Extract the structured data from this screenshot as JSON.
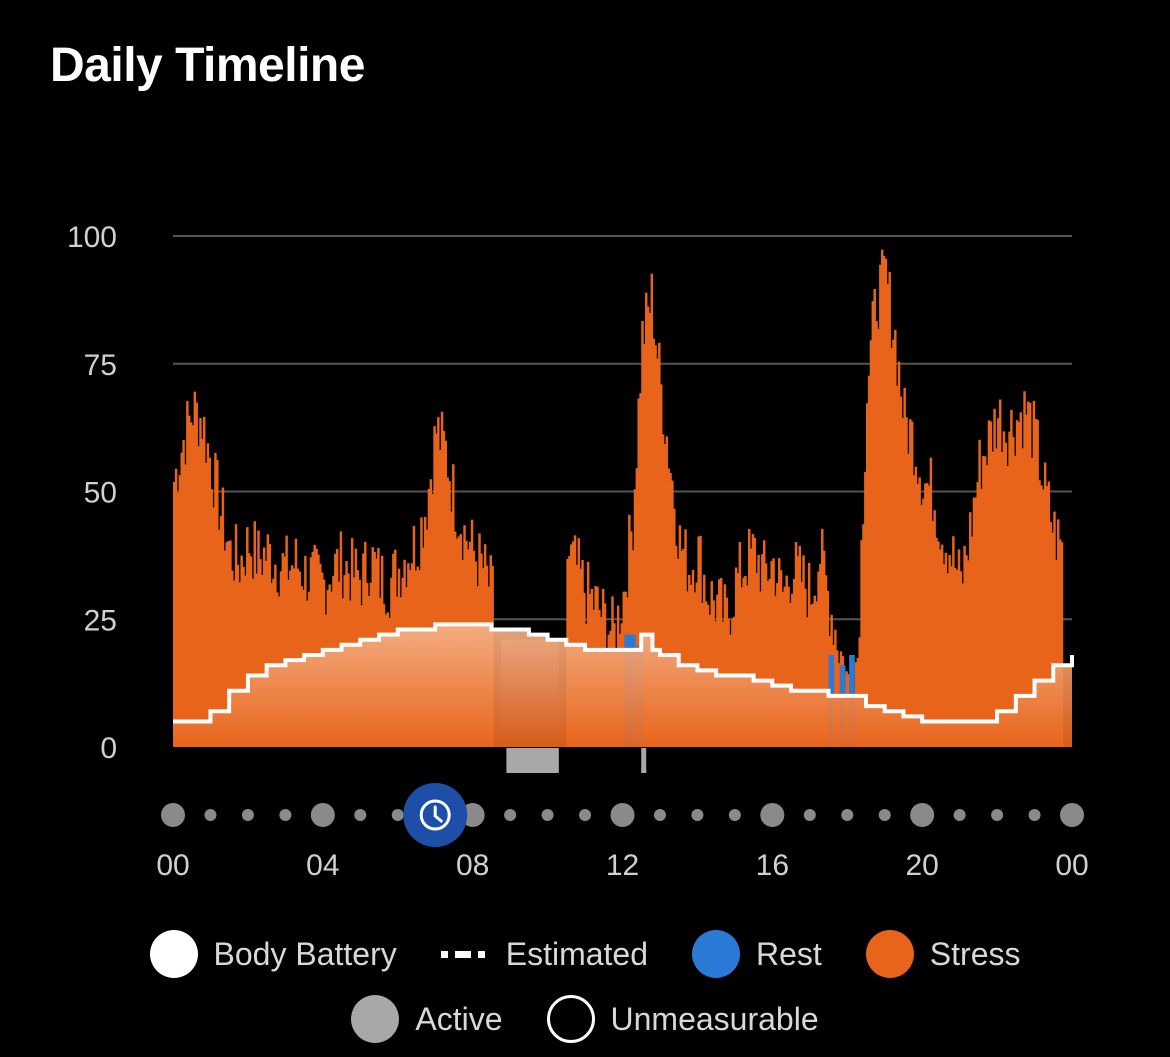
{
  "header": {
    "title": "Daily Timeline"
  },
  "colors": {
    "background": "#000000",
    "stress": "#e8641b",
    "rest": "#2a7ad6",
    "active": "#a8a8a8",
    "body_battery": "#ffffff",
    "gridline": "#555555",
    "timeline_marker": "#1d4fa8"
  },
  "timeline_marker": {
    "icon": "clock-icon",
    "hour": 7
  },
  "legend": {
    "body_battery": "Body Battery",
    "estimated": "Estimated",
    "rest": "Rest",
    "stress": "Stress",
    "active": "Active",
    "unmeasurable": "Unmeasurable"
  },
  "chart_data": {
    "type": "bar",
    "title": "Daily Timeline",
    "xlabel": "",
    "ylabel": "",
    "ylim": [
      0,
      100
    ],
    "yticks": [
      "0",
      "25",
      "50",
      "75",
      "100"
    ],
    "xticks": [
      "00",
      "04",
      "08",
      "12",
      "16",
      "20",
      "00"
    ],
    "xlim_hours": [
      0,
      24
    ],
    "grid": true,
    "legend_position": "bottom",
    "stress_series": {
      "name": "Stress",
      "hours": [
        0,
        0.25,
        0.5,
        0.75,
        1,
        1.25,
        1.5,
        1.75,
        2,
        2.25,
        2.5,
        2.75,
        3,
        3.25,
        3.5,
        3.75,
        4,
        4.25,
        4.5,
        4.75,
        5,
        5.25,
        5.5,
        5.75,
        6,
        6.25,
        6.5,
        6.75,
        7,
        7.25,
        7.5,
        7.75,
        8,
        8.25,
        8.5,
        10.5,
        10.75,
        11,
        11.25,
        11.5,
        11.75,
        12,
        12.25,
        12.5,
        12.75,
        13,
        13.25,
        13.5,
        13.75,
        14,
        14.25,
        14.5,
        14.75,
        15,
        15.25,
        15.5,
        15.75,
        16,
        16.25,
        16.5,
        16.75,
        17,
        17.25,
        17.5,
        17.75,
        18,
        18.25,
        18.5,
        18.75,
        19,
        19.25,
        19.5,
        19.75,
        20,
        20.25,
        20.5,
        20.75,
        21,
        21.25,
        21.5,
        21.75,
        22,
        22.25,
        22.5,
        22.75,
        23,
        23.25,
        23.5,
        23.75
      ],
      "values": [
        52,
        60,
        66,
        64,
        55,
        46,
        38,
        36,
        40,
        37,
        38,
        36,
        35,
        36,
        34,
        33,
        32,
        35,
        36,
        34,
        33,
        37,
        33,
        32,
        35,
        38,
        40,
        48,
        62,
        58,
        48,
        42,
        38,
        35,
        30,
        38,
        35,
        30,
        28,
        25,
        22,
        30,
        45,
        80,
        88,
        70,
        55,
        40,
        35,
        38,
        30,
        28,
        25,
        32,
        36,
        38,
        34,
        36,
        30,
        35,
        33,
        30,
        38,
        28,
        20,
        12,
        18,
        70,
        88,
        92,
        80,
        64,
        60,
        52,
        50,
        42,
        38,
        32,
        42,
        55,
        60,
        65,
        62,
        64,
        66,
        60,
        50,
        42,
        38
      ]
    },
    "rest_periods": [
      {
        "start": 12.05,
        "end": 12.35,
        "value": 22
      },
      {
        "start": 12.4,
        "end": 12.55,
        "value": 20
      },
      {
        "start": 17.5,
        "end": 17.65,
        "value": 18
      },
      {
        "start": 17.8,
        "end": 17.95,
        "value": 16
      },
      {
        "start": 18.05,
        "end": 18.2,
        "value": 18
      }
    ],
    "unmeasurable_period": {
      "start": 8.75,
      "end": 10.3
    },
    "active_periods": [
      {
        "start": 8.9,
        "end": 10.3
      },
      {
        "start": 12.5,
        "end": 12.6
      }
    ],
    "body_battery": {
      "name": "Body Battery",
      "hours": [
        0,
        0.6,
        1,
        1.5,
        2,
        2.5,
        3,
        3.5,
        4,
        4.5,
        5,
        5.5,
        6,
        6.5,
        7,
        7.5,
        8,
        8.5,
        9,
        9.5,
        10,
        10.5,
        11,
        11.5,
        12,
        12.3,
        12.5,
        12.8,
        13,
        13.5,
        14,
        14.5,
        15,
        15.5,
        16,
        16.5,
        17,
        17.5,
        18,
        18.5,
        19,
        19.5,
        20,
        20.5,
        21,
        21.5,
        22,
        22.5,
        23,
        23.5,
        24
      ],
      "values": [
        5,
        5,
        7,
        11,
        14,
        16,
        17,
        18,
        19,
        20,
        21,
        22,
        23,
        23,
        24,
        24,
        24,
        23,
        23,
        22,
        21,
        20,
        19,
        19,
        19,
        19,
        22,
        19,
        18,
        16,
        15,
        14,
        14,
        13,
        12,
        11,
        11,
        10,
        10,
        8,
        7,
        6,
        5,
        5,
        5,
        5,
        7,
        10,
        13,
        16,
        18
      ]
    }
  }
}
